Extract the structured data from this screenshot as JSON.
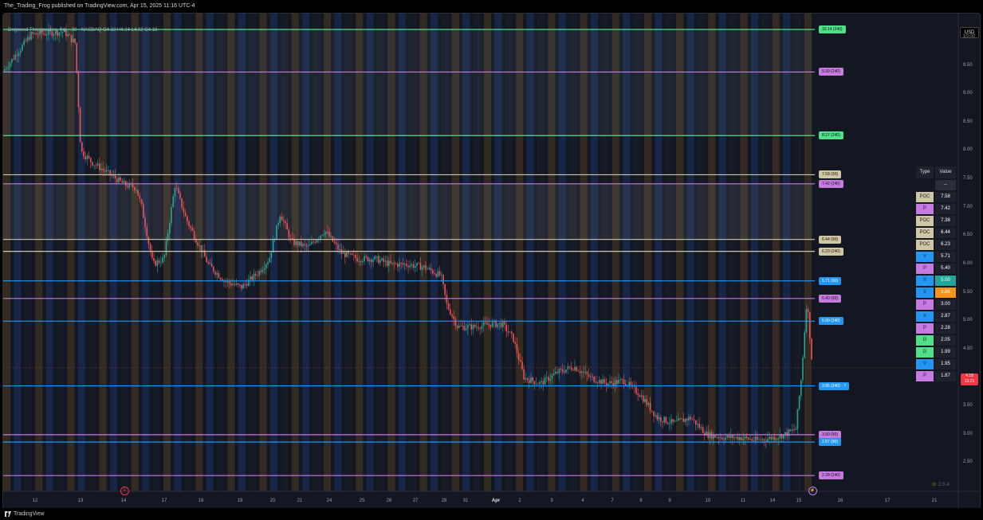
{
  "header": {
    "publish_line": "The_Trading_Frog published on TradingView.com, Apr 15, 2025 11:16 UTC-4"
  },
  "legend": {
    "text": "Dogwood Therapeutics, Inc. · 30 · NASDAQ  O4.18  H4.24  L4.02  C4.18"
  },
  "currency_button": "USD",
  "y_axis": {
    "ticks": [
      "10.00",
      "9.50",
      "9.00",
      "8.50",
      "8.00",
      "7.50",
      "7.00",
      "6.50",
      "6.00",
      "5.50",
      "5.00",
      "4.50",
      "4.00",
      "3.50",
      "3.00",
      "2.50"
    ],
    "min": 2.1,
    "max": 10.28
  },
  "x_axis": {
    "ticks": [
      {
        "label": "12",
        "bold": false
      },
      {
        "label": "13",
        "bold": false
      },
      {
        "label": "14",
        "bold": false
      },
      {
        "label": "17",
        "bold": false
      },
      {
        "label": "18",
        "bold": false
      },
      {
        "label": "19",
        "bold": false
      },
      {
        "label": "20",
        "bold": false
      },
      {
        "label": "21",
        "bold": false
      },
      {
        "label": "24",
        "bold": false
      },
      {
        "label": "25",
        "bold": false
      },
      {
        "label": "26",
        "bold": false
      },
      {
        "label": "27",
        "bold": false
      },
      {
        "label": "28",
        "bold": false
      },
      {
        "label": "31",
        "bold": false
      },
      {
        "label": "Apr",
        "bold": true
      },
      {
        "label": "2",
        "bold": false
      },
      {
        "label": "3",
        "bold": false
      },
      {
        "label": "4",
        "bold": false
      },
      {
        "label": "7",
        "bold": false
      },
      {
        "label": "8",
        "bold": false
      },
      {
        "label": "9",
        "bold": false
      },
      {
        "label": "10",
        "bold": false
      },
      {
        "label": "11",
        "bold": false
      },
      {
        "label": "14",
        "bold": false
      },
      {
        "label": "15",
        "bold": false
      },
      {
        "label": "16",
        "bold": false
      },
      {
        "label": "17",
        "bold": false
      },
      {
        "label": "21",
        "bold": false
      }
    ]
  },
  "price_tag": {
    "price": "4.18",
    "countdown": "13:21",
    "value": 4.18
  },
  "levels": [
    {
      "label": "10.14 (240)",
      "value": 10.14,
      "type": "G",
      "color": "#4fe08a"
    },
    {
      "label": "9.39 (240)",
      "value": 9.39,
      "type": "P",
      "color": "#c77ae0"
    },
    {
      "label": "8.27 (240)",
      "value": 8.27,
      "type": "G",
      "color": "#4fe08a"
    },
    {
      "label": "7.58 (90)",
      "value": 7.58,
      "type": "POC",
      "color": "#cfc7a3"
    },
    {
      "label": "7.42 (240)",
      "value": 7.42,
      "type": "P",
      "color": "#c77ae0"
    },
    {
      "label": "6.44 (90)",
      "value": 6.44,
      "type": "POC",
      "color": "#cfc7a3"
    },
    {
      "label": "6.23 (240)",
      "value": 6.23,
      "type": "POC",
      "color": "#cfc7a3"
    },
    {
      "label": "5.71 (90)",
      "value": 5.71,
      "type": "V",
      "color": "#2196f3"
    },
    {
      "label": "5.40 (90)",
      "value": 5.4,
      "type": "P",
      "color": "#c77ae0"
    },
    {
      "label": "5.00 (240)",
      "value": 5.0,
      "type": "V",
      "color": "#2196f3"
    },
    {
      "label": "3.86 (240) · 7",
      "value": 3.86,
      "type": "V",
      "color": "#2196f3"
    },
    {
      "label": "3.00 (90)",
      "value": 3.0,
      "type": "P",
      "color": "#c77ae0"
    },
    {
      "label": "2.87 (90)",
      "value": 2.87,
      "type": "V",
      "color": "#2196f3"
    },
    {
      "label": "2.28 (240)",
      "value": 2.28,
      "type": "P",
      "color": "#c77ae0"
    }
  ],
  "table": {
    "headers": [
      "Type",
      "Value"
    ],
    "placeholder": "--",
    "rows": [
      {
        "type": "POC",
        "value": "7.58",
        "type_color": "#cfc7a3",
        "value_color": "#1e222d"
      },
      {
        "type": "P",
        "value": "7.42",
        "type_color": "#c77ae0",
        "value_color": "#1e222d"
      },
      {
        "type": "POC",
        "value": "7.38",
        "type_color": "#cfc7a3",
        "value_color": "#1e222d"
      },
      {
        "type": "POC",
        "value": "6.44",
        "type_color": "#cfc7a3",
        "value_color": "#1e222d"
      },
      {
        "type": "POC",
        "value": "6.23",
        "type_color": "#cfc7a3",
        "value_color": "#1e222d"
      },
      {
        "type": "V",
        "value": "5.71",
        "type_color": "#2196f3",
        "value_color": "#1e222d"
      },
      {
        "type": "P",
        "value": "5.40",
        "type_color": "#c77ae0",
        "value_color": "#1e222d"
      },
      {
        "type": "V",
        "value": "5.00",
        "type_color": "#2196f3",
        "value_color": "#1fa89a"
      },
      {
        "type": "V",
        "value": "3.86",
        "type_color": "#2196f3",
        "value_color": "#f7931a"
      },
      {
        "type": "P",
        "value": "3.00",
        "type_color": "#c77ae0",
        "value_color": "#1e222d"
      },
      {
        "type": "V",
        "value": "2.87",
        "type_color": "#2196f3",
        "value_color": "#1e222d"
      },
      {
        "type": "P",
        "value": "2.28",
        "type_color": "#c77ae0",
        "value_color": "#1e222d"
      },
      {
        "type": "G",
        "value": "2.05",
        "type_color": "#4fe08a",
        "value_color": "#1e222d"
      },
      {
        "type": "G",
        "value": "1.99",
        "type_color": "#4fe08a",
        "value_color": "#1e222d"
      },
      {
        "type": "V",
        "value": "1.95",
        "type_color": "#2196f3",
        "value_color": "#1e222d"
      },
      {
        "type": "P",
        "value": "1.87",
        "type_color": "#c77ae0",
        "value_color": "#1e222d"
      }
    ]
  },
  "events": [
    {
      "label": "E",
      "color": "#f23645"
    },
    {
      "label": "⚡",
      "color": "#c77ae0"
    }
  ],
  "version_badge": "2.5.4",
  "footer": {
    "brand": "TradingView"
  },
  "chart_data": {
    "type": "candlestick",
    "ylim": [
      2.1,
      10.28
    ],
    "close_path": [
      [
        0,
        9.4
      ],
      [
        5,
        10.05
      ],
      [
        11,
        10.1
      ],
      [
        13,
        9.9
      ],
      [
        14,
        8.0
      ],
      [
        16,
        7.8
      ],
      [
        19,
        7.6
      ],
      [
        22,
        7.4
      ],
      [
        24,
        7.35
      ],
      [
        25,
        7.0
      ],
      [
        27,
        6.0
      ],
      [
        29,
        6.1
      ],
      [
        31,
        7.4
      ],
      [
        33,
        6.8
      ],
      [
        35,
        6.4
      ],
      [
        37,
        6.0
      ],
      [
        40,
        5.7
      ],
      [
        43,
        5.6
      ],
      [
        46,
        5.85
      ],
      [
        48,
        6.1
      ],
      [
        50,
        6.9
      ],
      [
        52,
        6.4
      ],
      [
        55,
        6.3
      ],
      [
        58,
        6.6
      ],
      [
        61,
        6.2
      ],
      [
        64,
        6.1
      ],
      [
        67,
        6.1
      ],
      [
        70,
        6.0
      ],
      [
        73,
        6.0
      ],
      [
        76,
        5.95
      ],
      [
        79,
        5.8
      ],
      [
        80,
        5.3
      ],
      [
        82,
        4.9
      ],
      [
        85,
        4.9
      ],
      [
        88,
        4.95
      ],
      [
        90,
        4.95
      ],
      [
        92,
        4.7
      ],
      [
        94,
        4.0
      ],
      [
        97,
        3.9
      ],
      [
        100,
        4.1
      ],
      [
        103,
        4.2
      ],
      [
        106,
        4.0
      ],
      [
        109,
        3.9
      ],
      [
        112,
        3.95
      ],
      [
        115,
        3.7
      ],
      [
        118,
        3.3
      ],
      [
        121,
        3.2
      ],
      [
        124,
        3.3
      ],
      [
        127,
        3.0
      ],
      [
        130,
        2.95
      ],
      [
        133,
        2.95
      ],
      [
        136,
        2.9
      ],
      [
        139,
        2.95
      ],
      [
        141,
        3.0
      ],
      [
        143,
        3.1
      ],
      [
        144,
        4.0
      ],
      [
        145,
        5.4
      ],
      [
        146,
        4.18
      ]
    ]
  }
}
